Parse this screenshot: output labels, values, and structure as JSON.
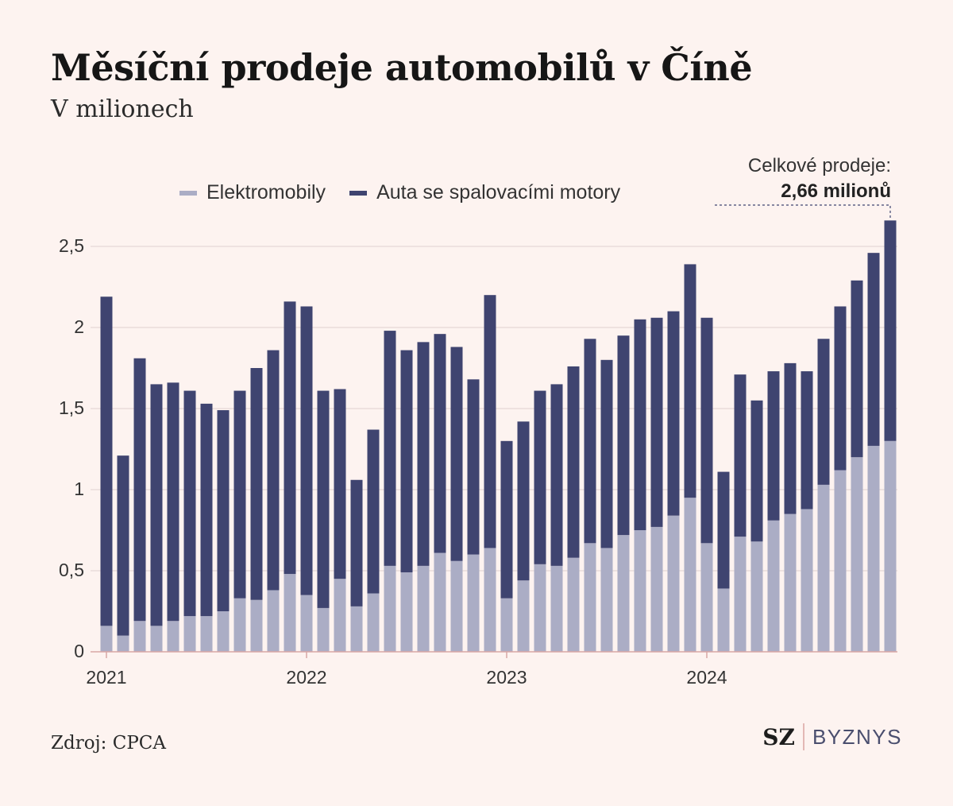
{
  "title": "Měsíční prodeje automobilů v Číně",
  "subtitle": "V milionech",
  "colors": {
    "background": "#fdf3f0",
    "ev": "#abadc5",
    "ice": "#3f4470",
    "grid": "#e0d1cf",
    "axis": "#d9a7a5",
    "text": "#333333"
  },
  "callout": {
    "label": "Celkové prodeje:",
    "value": "2,66 milionů"
  },
  "source": "Zdroj: CPCA",
  "logo": {
    "sz": "SZ",
    "byznys": "BYZNYS"
  },
  "chart_data": {
    "type": "bar",
    "stacked": true,
    "title": "Měsíční prodeje automobilů v Číně",
    "subtitle": "V milionech",
    "ylim": [
      0,
      2.7
    ],
    "y_ticks": [
      0,
      0.5,
      1,
      1.5,
      2,
      2.5
    ],
    "y_tick_labels": [
      "0",
      "0,5",
      "1",
      "1,5",
      "2",
      "2,5"
    ],
    "x_tick_labels": [
      "2021",
      "2022",
      "2023",
      "2024"
    ],
    "grid": "horizontal",
    "legend_position": "top",
    "categories": [
      "2021-01",
      "2021-02",
      "2021-03",
      "2021-04",
      "2021-05",
      "2021-06",
      "2021-07",
      "2021-08",
      "2021-09",
      "2021-10",
      "2021-11",
      "2021-12",
      "2022-01",
      "2022-02",
      "2022-03",
      "2022-04",
      "2022-05",
      "2022-06",
      "2022-07",
      "2022-08",
      "2022-09",
      "2022-10",
      "2022-11",
      "2022-12",
      "2023-01",
      "2023-02",
      "2023-03",
      "2023-04",
      "2023-05",
      "2023-06",
      "2023-07",
      "2023-08",
      "2023-09",
      "2023-10",
      "2023-11",
      "2023-12",
      "2024-01",
      "2024-02",
      "2024-03",
      "2024-04",
      "2024-05",
      "2024-06",
      "2024-07",
      "2024-08",
      "2024-09",
      "2024-10",
      "2024-11",
      "2024-12"
    ],
    "series": [
      {
        "name": "Elektromobily",
        "color": "#abadc5",
        "values": [
          0.16,
          0.1,
          0.19,
          0.16,
          0.19,
          0.22,
          0.22,
          0.25,
          0.33,
          0.32,
          0.38,
          0.48,
          0.35,
          0.27,
          0.45,
          0.28,
          0.36,
          0.53,
          0.49,
          0.53,
          0.61,
          0.56,
          0.6,
          0.64,
          0.33,
          0.44,
          0.54,
          0.53,
          0.58,
          0.67,
          0.64,
          0.72,
          0.75,
          0.77,
          0.84,
          0.95,
          0.67,
          0.39,
          0.71,
          0.68,
          0.81,
          0.85,
          0.88,
          1.03,
          1.12,
          1.2,
          1.27,
          1.3
        ]
      },
      {
        "name": "Auta se spalovacími motory",
        "color": "#3f4470",
        "values": [
          2.03,
          1.11,
          1.62,
          1.49,
          1.47,
          1.39,
          1.31,
          1.24,
          1.28,
          1.43,
          1.48,
          1.68,
          1.78,
          1.34,
          1.17,
          0.78,
          1.01,
          1.45,
          1.37,
          1.38,
          1.35,
          1.32,
          1.08,
          1.56,
          0.97,
          0.98,
          1.07,
          1.12,
          1.18,
          1.26,
          1.16,
          1.23,
          1.3,
          1.29,
          1.26,
          1.44,
          1.39,
          0.72,
          1.0,
          0.87,
          0.92,
          0.93,
          0.85,
          0.9,
          1.01,
          1.09,
          1.19,
          1.36
        ]
      }
    ],
    "annotation": "Celkové prodeje: 2,66 milionů"
  }
}
